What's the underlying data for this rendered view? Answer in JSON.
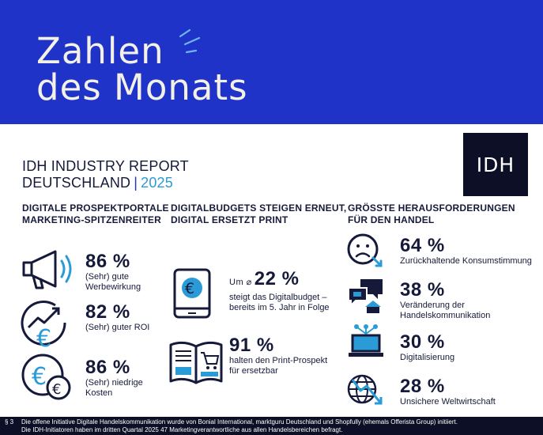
{
  "banner": {
    "line1": "Zahlen",
    "line2": "des Monats",
    "background": "#1f33c9",
    "text_color": "#f3f1e4"
  },
  "report": {
    "line1": "IDH INDUSTRY REPORT",
    "line2": "DEUTSCHLAND",
    "separator": "|",
    "year": "2025"
  },
  "logo": {
    "text": "IDH"
  },
  "columns": [
    {
      "heading": [
        "DIGITALE PROSPEKTPORTALE",
        "MARKETING-SPITZENREITER"
      ],
      "stats": [
        {
          "value": "86 %",
          "label": [
            "(Sehr) gute",
            "Werbewirkung"
          ],
          "icon": "megaphone-icon"
        },
        {
          "value": "82 %",
          "label": [
            "(Sehr) guter ROI"
          ],
          "icon": "euro-growth-icon"
        },
        {
          "value": "86 %",
          "label": [
            "(Sehr) niedrige",
            "Kosten"
          ],
          "icon": "euro-coins-icon"
        }
      ]
    },
    {
      "heading": [
        "DIGITALBUDGETS STEIGEN ERNEUT,",
        "DIGITAL ERSETZT PRINT"
      ],
      "stats": [
        {
          "prefix": "Um ⌀",
          "value": "22 %",
          "label": [
            "steigt das Digitalbudget –",
            "bereits im 5. Jahr in Folge"
          ],
          "icon": "tablet-euro-icon"
        },
        {
          "value": "91 %",
          "label": [
            "halten den Print-Prospekt",
            "für ersetzbar"
          ],
          "icon": "brochure-icon"
        }
      ]
    },
    {
      "heading": [
        "GRÖSSTE HERAUSFORDERUNGEN",
        "FÜR DEN HANDEL"
      ],
      "stats": [
        {
          "value": "64 %",
          "label": [
            "Zurückhaltende Konsumstimmung"
          ],
          "icon": "sad-face-down-icon"
        },
        {
          "value": "38 %",
          "label": [
            "Veränderung der",
            "Handelskommunikation"
          ],
          "icon": "chat-store-icon"
        },
        {
          "value": "30 %",
          "label": [
            "Digitalisierung"
          ],
          "icon": "laptop-network-icon"
        },
        {
          "value": "28 %",
          "label": [
            "Unsichere Weltwirtschaft"
          ],
          "icon": "globe-trend-icon"
        }
      ]
    }
  ],
  "footer": {
    "marker": "§ 3",
    "line1": "Die offene Initiative Digitale Handelskommunikation wurde von Bonial International, marktguru Deutschland und Shopfully (ehemals Offerista Group) initiiert.",
    "line2": "Die IDH-Initiatoren haben im dritten Quartal 2025 47 Marketingverantwortliche aus allen Handelsbereichen befragt."
  },
  "colors": {
    "navy": "#161a3a",
    "blue": "#1f33c9",
    "light_blue": "#2a9bd6",
    "dark": "#0d0f26"
  }
}
